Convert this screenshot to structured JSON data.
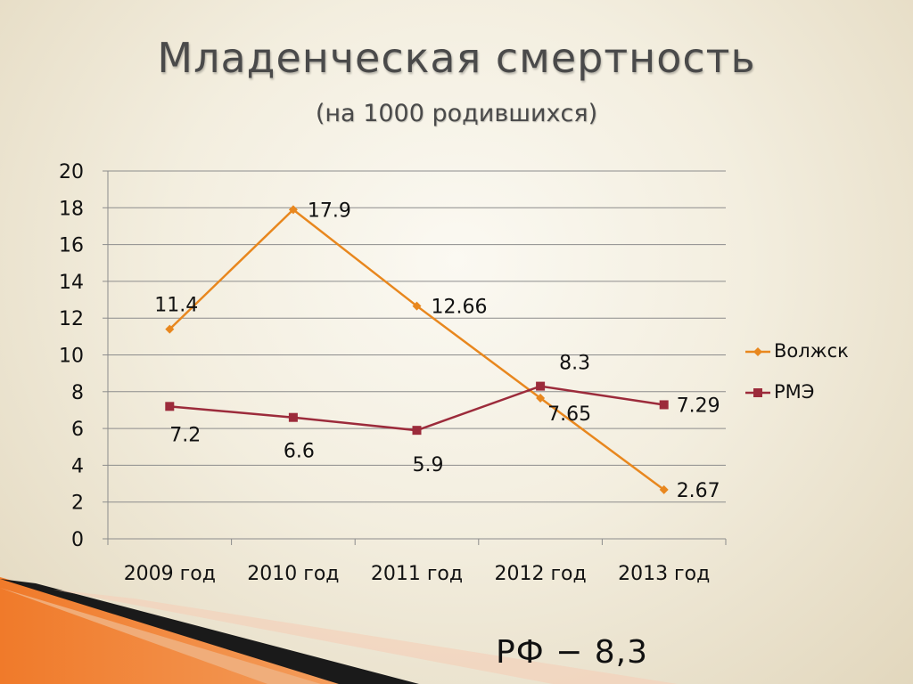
{
  "title": "Младенческая смертность",
  "subtitle": "(на 1000 родившихся)",
  "footer": "РФ − 8,3",
  "chart_data": {
    "type": "line",
    "categories": [
      "2009 год",
      "2010 год",
      "2011 год",
      "2012 год",
      "2013 год"
    ],
    "ylim": [
      0,
      20
    ],
    "yticks": [
      "0",
      "2",
      "4",
      "6",
      "8",
      "10",
      "12",
      "14",
      "16",
      "18",
      "20"
    ],
    "grid": true,
    "legend_position": "right",
    "series": [
      {
        "name": "Волжск",
        "color": "#e8871e",
        "marker": "diamond",
        "values": [
          11.4,
          17.9,
          12.66,
          7.65,
          2.67
        ],
        "labels": [
          "11.4",
          "17.9",
          "12.66",
          "7.65",
          "2.67"
        ]
      },
      {
        "name": "РМЭ",
        "color": "#9c2b3b",
        "marker": "square",
        "values": [
          7.2,
          6.6,
          5.9,
          8.3,
          7.29
        ],
        "labels": [
          "7.2",
          "6.6",
          "5.9",
          "8.3",
          "7.29"
        ]
      }
    ]
  }
}
